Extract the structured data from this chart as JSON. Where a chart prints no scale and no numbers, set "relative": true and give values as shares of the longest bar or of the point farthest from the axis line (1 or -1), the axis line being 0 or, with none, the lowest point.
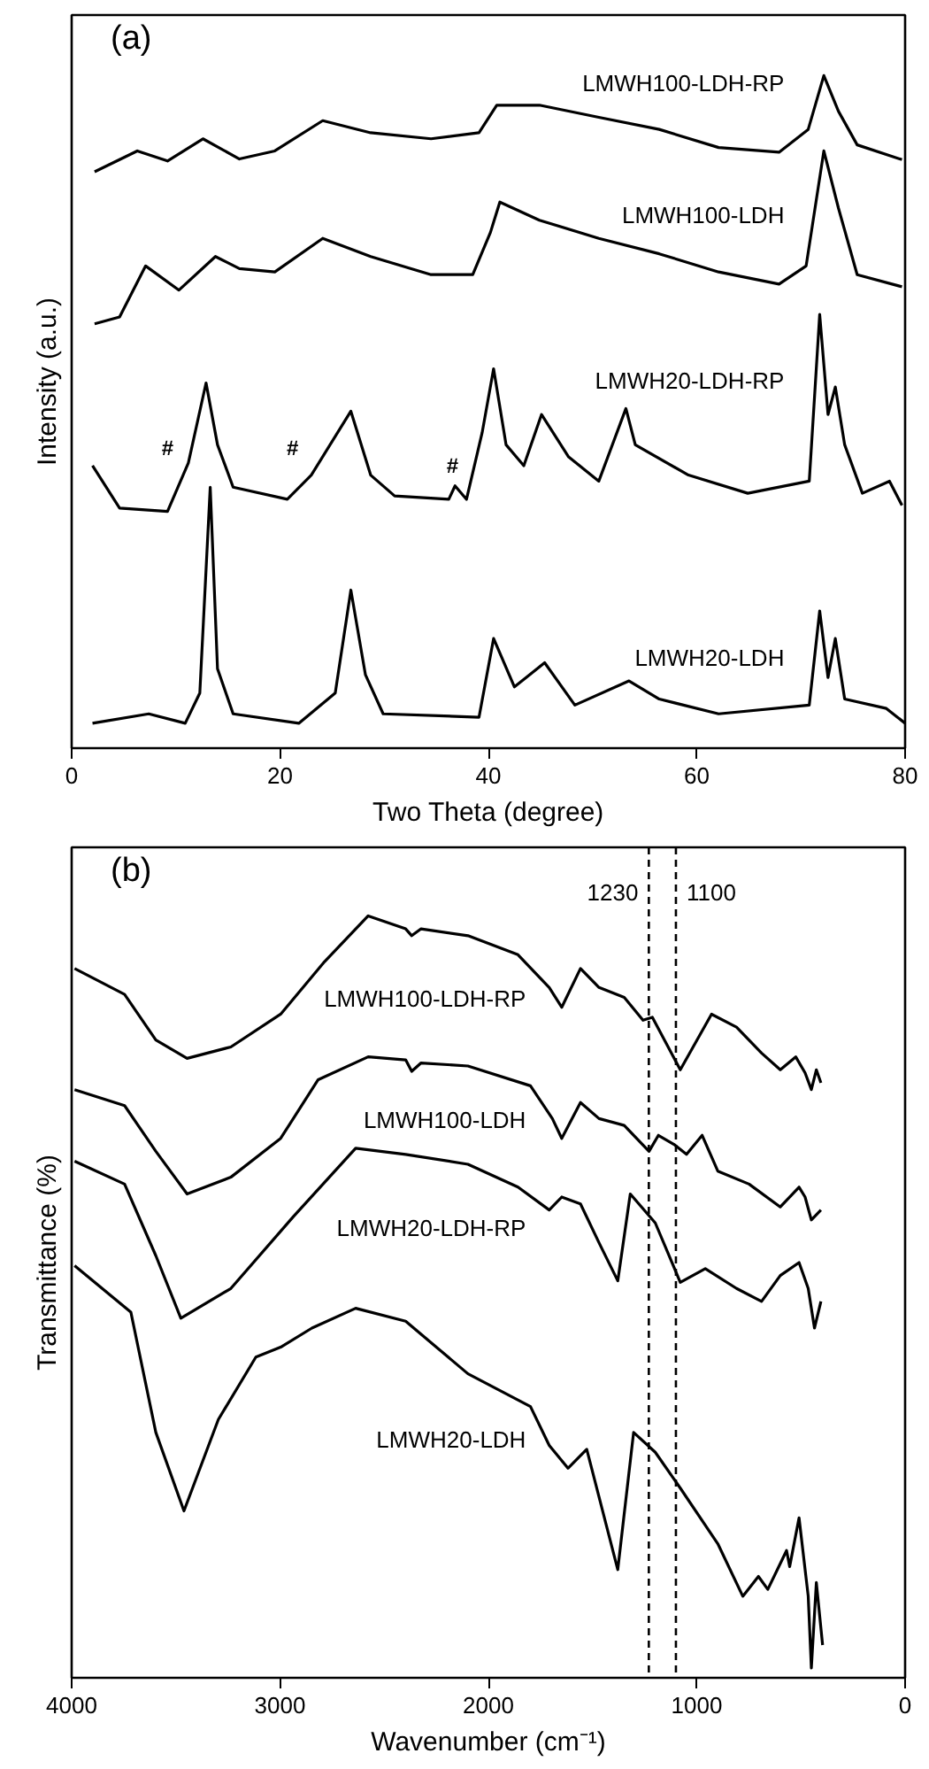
{
  "chart_data": [
    {
      "type": "line",
      "title": "(a)",
      "xlabel": "Two Theta (degree)",
      "ylabel": "Intensity (a.u.)",
      "relative": true,
      "xlim": [
        0,
        80
      ],
      "xticks": [
        0,
        20,
        40,
        60,
        80
      ],
      "grid": false,
      "tick_labels": "x",
      "annotations": [
        "#",
        "#",
        "#"
      ],
      "series": [
        {
          "name": "LMWH100-LDH-RP",
          "color": "#000000",
          "x": [
            2.2,
            6.3,
            9.2,
            12.6,
            16.1,
            19.5,
            24.1,
            28.7,
            34.5,
            39.1,
            40.8,
            44.9,
            50.6,
            56.4,
            62.1,
            67.9,
            70.7,
            72.2,
            73.6,
            75.4,
            79.7
          ],
          "values": [
            0.857,
            0.888,
            0.873,
            0.906,
            0.876,
            0.888,
            0.933,
            0.915,
            0.906,
            0.915,
            0.956,
            0.956,
            0.938,
            0.92,
            0.893,
            0.886,
            0.92,
            1.0,
            0.947,
            0.897,
            0.875
          ]
        },
        {
          "name": "LMWH100-LDH",
          "color": "#000000",
          "x": [
            2.2,
            4.6,
            7.1,
            10.3,
            13.8,
            16.1,
            19.5,
            24.1,
            28.7,
            34.5,
            38.5,
            40.2,
            41.1,
            44.9,
            50.6,
            56.4,
            62.1,
            67.9,
            70.5,
            72.2,
            73.6,
            75.4,
            79.7
          ],
          "values": [
            0.631,
            0.641,
            0.717,
            0.681,
            0.731,
            0.713,
            0.708,
            0.758,
            0.731,
            0.704,
            0.704,
            0.767,
            0.812,
            0.785,
            0.758,
            0.735,
            0.708,
            0.69,
            0.717,
            0.888,
            0.803,
            0.704,
            0.686
          ]
        },
        {
          "name": "LMWH20-LDH-RP",
          "color": "#000000",
          "x": [
            2.0,
            4.6,
            9.2,
            11.2,
            12.9,
            14.0,
            15.5,
            20.7,
            23.0,
            26.8,
            28.7,
            31.0,
            36.2,
            36.8,
            37.9,
            39.4,
            40.5,
            41.7,
            43.4,
            45.1,
            47.7,
            50.6,
            53.2,
            54.1,
            59.2,
            64.9,
            70.8,
            71.8,
            72.6,
            73.3,
            74.2,
            75.9,
            78.5,
            79.7
          ],
          "values": [
            0.42,
            0.357,
            0.352,
            0.424,
            0.543,
            0.451,
            0.388,
            0.37,
            0.406,
            0.501,
            0.406,
            0.375,
            0.37,
            0.39,
            0.37,
            0.469,
            0.564,
            0.451,
            0.42,
            0.496,
            0.433,
            0.397,
            0.505,
            0.451,
            0.406,
            0.379,
            0.397,
            0.645,
            0.496,
            0.537,
            0.451,
            0.379,
            0.397,
            0.361
          ]
        },
        {
          "name": "LMWH20-LDH",
          "color": "#000000",
          "x": [
            2.0,
            7.4,
            10.9,
            12.3,
            13.3,
            14.0,
            15.5,
            21.8,
            25.3,
            26.8,
            28.2,
            29.9,
            39.1,
            40.5,
            42.5,
            45.4,
            48.3,
            53.5,
            56.4,
            62.1,
            70.8,
            71.8,
            72.6,
            73.3,
            74.2,
            78.2,
            80.0
          ],
          "values": [
            0.037,
            0.051,
            0.037,
            0.082,
            0.388,
            0.118,
            0.051,
            0.037,
            0.082,
            0.235,
            0.109,
            0.051,
            0.046,
            0.163,
            0.091,
            0.127,
            0.064,
            0.1,
            0.073,
            0.051,
            0.064,
            0.204,
            0.105,
            0.163,
            0.073,
            0.059,
            0.037
          ]
        }
      ]
    },
    {
      "type": "line",
      "title": "(b)",
      "xlabel": "Wavenumber (cm⁻¹)",
      "ylabel": "Transmittance (%)",
      "relative": true,
      "xlim": [
        4000,
        0
      ],
      "xticks": [
        4000,
        3000,
        2000,
        1000,
        0
      ],
      "grid": false,
      "tick_labels": "x",
      "ref_lines": [
        {
          "axis": "x",
          "value": 1230,
          "label": "1230",
          "line_style": "dashed"
        },
        {
          "axis": "x",
          "value": 1100,
          "label": "1100",
          "line_style": "dashed"
        }
      ],
      "series": [
        {
          "name": "LMWH100-LDH-RP",
          "color": "#000000",
          "x": [
            3986,
            3746,
            3596,
            3446,
            3236,
            2997,
            2786,
            2577,
            2397,
            2368,
            2323,
            2098,
            1858,
            1708,
            1648,
            1558,
            1469,
            1348,
            1258,
            1213,
            1079,
            929,
            809,
            689,
            599,
            525,
            480,
            450,
            426,
            404
          ],
          "values": [
            0.931,
            0.897,
            0.837,
            0.813,
            0.828,
            0.871,
            0.94,
            1.0,
            0.983,
            0.974,
            0.983,
            0.974,
            0.949,
            0.906,
            0.88,
            0.931,
            0.906,
            0.893,
            0.863,
            0.867,
            0.798,
            0.871,
            0.854,
            0.82,
            0.798,
            0.815,
            0.794,
            0.772,
            0.798,
            0.781
          ]
        },
        {
          "name": "LMWH100-LDH",
          "color": "#000000",
          "x": [
            3986,
            3746,
            3596,
            3446,
            3236,
            2997,
            2817,
            2577,
            2397,
            2368,
            2323,
            2098,
            1798,
            1693,
            1648,
            1558,
            1469,
            1348,
            1229,
            1184,
            1109,
            1049,
            974,
            899,
            749,
            599,
            509,
            480,
            450,
            404
          ],
          "values": [
            0.772,
            0.751,
            0.691,
            0.635,
            0.657,
            0.708,
            0.785,
            0.815,
            0.811,
            0.796,
            0.807,
            0.803,
            0.777,
            0.734,
            0.708,
            0.755,
            0.734,
            0.725,
            0.691,
            0.712,
            0.7,
            0.687,
            0.712,
            0.665,
            0.648,
            0.618,
            0.644,
            0.631,
            0.601,
            0.614
          ]
        },
        {
          "name": "LMWH20-LDH-RP",
          "color": "#000000",
          "x": [
            3986,
            3746,
            3596,
            3476,
            3236,
            2937,
            2637,
            2397,
            2098,
            1858,
            1708,
            1648,
            1558,
            1469,
            1379,
            1319,
            1199,
            1079,
            959,
            809,
            689,
            599,
            509,
            465,
            435,
            404
          ],
          "values": [
            0.678,
            0.648,
            0.554,
            0.472,
            0.511,
            0.605,
            0.695,
            0.687,
            0.674,
            0.644,
            0.614,
            0.631,
            0.622,
            0.571,
            0.521,
            0.635,
            0.597,
            0.519,
            0.537,
            0.511,
            0.494,
            0.528,
            0.545,
            0.511,
            0.459,
            0.494
          ]
        },
        {
          "name": "LMWH20-LDH",
          "color": "#000000",
          "x": [
            3986,
            3716,
            3596,
            3461,
            3296,
            3116,
            2997,
            2847,
            2637,
            2397,
            2098,
            1798,
            1708,
            1618,
            1528,
            1379,
            1303,
            1199,
            1079,
            899,
            779,
            704,
            659,
            569,
            554,
            509,
            465,
            450,
            426,
            396
          ],
          "values": [
            0.541,
            0.48,
            0.322,
            0.219,
            0.339,
            0.421,
            0.434,
            0.459,
            0.485,
            0.468,
            0.399,
            0.356,
            0.305,
            0.275,
            0.3,
            0.142,
            0.322,
            0.296,
            0.249,
            0.176,
            0.107,
            0.133,
            0.116,
            0.167,
            0.146,
            0.21,
            0.107,
            0.013,
            0.125,
            0.043
          ]
        }
      ]
    }
  ]
}
